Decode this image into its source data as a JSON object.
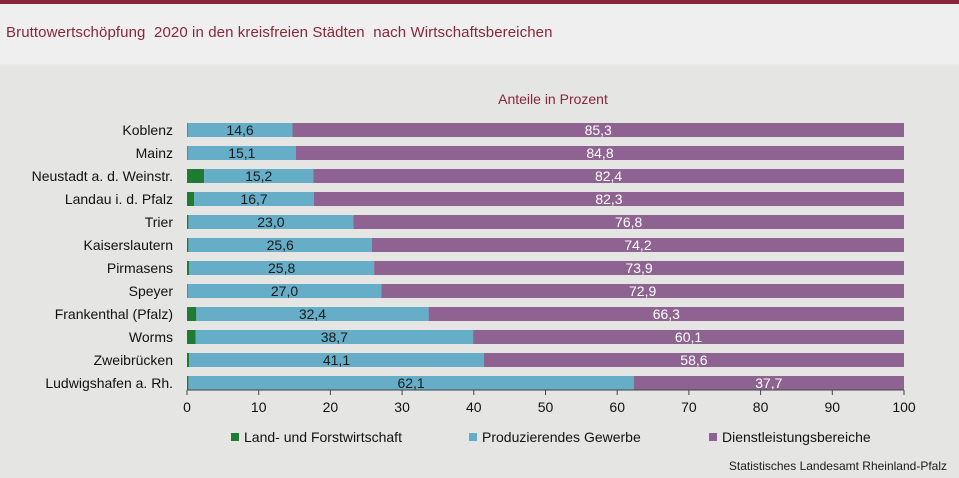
{
  "title": "Bruttowertschöpfung  2020 in den kreisfreien Städten  nach Wirtschaftsbereichen",
  "source": "Statistisches Landesamt Rheinland-Pfalz",
  "colors": {
    "title": "#8a2638",
    "land": "#1e7c32",
    "produz": "#66adc8",
    "dienst": "#8f6391"
  },
  "chart_data": {
    "type": "bar",
    "orientation": "horizontal",
    "stacked": true,
    "subtitle": "Anteile in Prozent",
    "categories": [
      "Koblenz",
      "Mainz",
      "Neustadt a. d. Weinstr.",
      "Landau i. d. Pfalz",
      "Trier",
      "Kaiserslautern",
      "Pirmasens",
      "Speyer",
      "Frankenthal (Pfalz)",
      "Worms",
      "Zweibrücken",
      "Ludwigshafen a. Rh."
    ],
    "series": [
      {
        "name": "Land- und Forstwirtschaft",
        "color": "#1e7c32",
        "values": [
          0.1,
          0.1,
          2.4,
          1.0,
          0.2,
          0.2,
          0.3,
          0.1,
          1.3,
          1.2,
          0.3,
          0.2
        ],
        "labels": [
          "",
          "",
          "",
          "",
          "",
          "",
          "",
          "",
          "",
          "",
          "",
          ""
        ]
      },
      {
        "name": "Produzierendes Gewerbe",
        "color": "#66adc8",
        "values": [
          14.6,
          15.1,
          15.2,
          16.7,
          23.0,
          25.6,
          25.8,
          27.0,
          32.4,
          38.7,
          41.1,
          62.1
        ],
        "labels": [
          "14,6",
          "15,1",
          "15,2",
          "16,7",
          "23,0",
          "25,6",
          "25,8",
          "27,0",
          "32,4",
          "38,7",
          "41,1",
          "62,1"
        ]
      },
      {
        "name": "Dienstleistungsbereiche",
        "color": "#8f6391",
        "values": [
          85.3,
          84.8,
          82.4,
          82.3,
          76.8,
          74.2,
          73.9,
          72.9,
          66.3,
          60.1,
          58.6,
          37.7
        ],
        "labels": [
          "85,3",
          "84,8",
          "82,4",
          "82,3",
          "76,8",
          "74,2",
          "73,9",
          "72,9",
          "66,3",
          "60,1",
          "58,6",
          "37,7"
        ]
      }
    ],
    "xlim": [
      0,
      100
    ],
    "xticks": [
      0,
      10,
      20,
      30,
      40,
      50,
      60,
      70,
      80,
      90,
      100
    ],
    "legend_position": "bottom"
  }
}
